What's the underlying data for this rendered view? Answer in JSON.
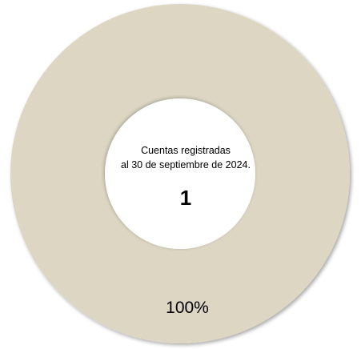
{
  "chart_data": {
    "type": "pie",
    "style": "donut",
    "center_label": {
      "line1": "Cuentas registradas",
      "line2": "al 30 de septiembre de 2024.",
      "total": "1"
    },
    "slices": [
      {
        "value": 1,
        "percent_label": "100%",
        "color": "#dcd6c3"
      }
    ]
  }
}
